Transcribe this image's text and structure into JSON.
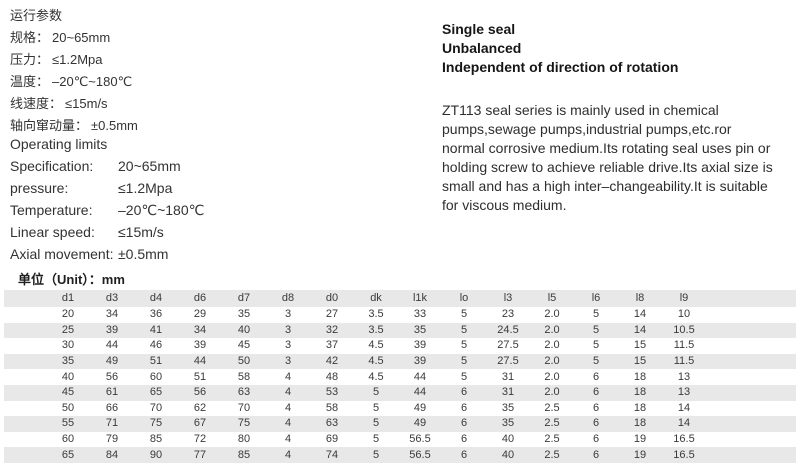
{
  "colors": {
    "stripe": "#e8e8e8",
    "text": "#3a3a3a",
    "heading": "#161616"
  },
  "cn_params": {
    "title": "运行参数",
    "items": [
      {
        "label": "规格：",
        "value": "20~65mm"
      },
      {
        "label": "压力：",
        "value": "≤1.2Mpa"
      },
      {
        "label": "温度：",
        "value": "–20℃~180℃"
      },
      {
        "label": "线速度：",
        "value": "≤15m/s"
      },
      {
        "label": "轴向窜动量：",
        "value": "±0.5mm"
      }
    ]
  },
  "operating_limits": {
    "title": "Operating limits",
    "items": [
      {
        "label": "Specification:",
        "value": "20~65mm"
      },
      {
        "label": "pressure:",
        "value": "≤1.2Mpa"
      },
      {
        "label": "Temperature:",
        "value": "–20℃~180℃"
      },
      {
        "label": "Linear speed:",
        "value": "≤15m/s"
      },
      {
        "label": "Axial movement:",
        "value": "±0.5mm"
      }
    ]
  },
  "features": [
    "Single seal",
    "Unbalanced",
    "Independent of direction of rotation"
  ],
  "description_lines": [
    "ZT113 seal series is mainly used in chemical",
    "pumps,sewage pumps,industrial pumps,etc.ror",
    "normal corrosive medium.Its rotating seal uses pin or",
    "holding screw to achieve reliable drive.Its axial size is",
    "small and has a high inter–changeability.It is suitable",
    "for viscous medium."
  ],
  "unit_label": "单位（Unit）：mm",
  "dimension_table": {
    "columns": [
      "d1",
      "d3",
      "d4",
      "d6",
      "d7",
      "d8",
      "d0",
      "dk",
      "l1k",
      "lo",
      "l3",
      "l5",
      "l6",
      "l8",
      "l9"
    ],
    "rows": [
      [
        "20",
        "34",
        "36",
        "29",
        "35",
        "3",
        "27",
        "3.5",
        "33",
        "5",
        "23",
        "2.0",
        "5",
        "14",
        "10"
      ],
      [
        "25",
        "39",
        "41",
        "34",
        "40",
        "3",
        "32",
        "3.5",
        "35",
        "5",
        "24.5",
        "2.0",
        "5",
        "14",
        "10.5"
      ],
      [
        "30",
        "44",
        "46",
        "39",
        "45",
        "3",
        "37",
        "4.5",
        "39",
        "5",
        "27.5",
        "2.0",
        "5",
        "15",
        "11.5"
      ],
      [
        "35",
        "49",
        "51",
        "44",
        "50",
        "3",
        "42",
        "4.5",
        "39",
        "5",
        "27.5",
        "2.0",
        "5",
        "15",
        "11.5"
      ],
      [
        "40",
        "56",
        "60",
        "51",
        "58",
        "4",
        "48",
        "4.5",
        "44",
        "5",
        "31",
        "2.0",
        "6",
        "18",
        "13"
      ],
      [
        "45",
        "61",
        "65",
        "56",
        "63",
        "4",
        "53",
        "5",
        "44",
        "6",
        "31",
        "2.0",
        "6",
        "18",
        "13"
      ],
      [
        "50",
        "66",
        "70",
        "62",
        "70",
        "4",
        "58",
        "5",
        "49",
        "6",
        "35",
        "2.5",
        "6",
        "18",
        "14"
      ],
      [
        "55",
        "71",
        "75",
        "67",
        "75",
        "4",
        "63",
        "5",
        "49",
        "6",
        "35",
        "2.5",
        "6",
        "18",
        "14"
      ],
      [
        "60",
        "79",
        "85",
        "72",
        "80",
        "4",
        "69",
        "5",
        "56.5",
        "6",
        "40",
        "2.5",
        "6",
        "19",
        "16.5"
      ],
      [
        "65",
        "84",
        "90",
        "77",
        "85",
        "4",
        "74",
        "5",
        "56.5",
        "6",
        "40",
        "2.5",
        "6",
        "19",
        "16.5"
      ]
    ]
  }
}
